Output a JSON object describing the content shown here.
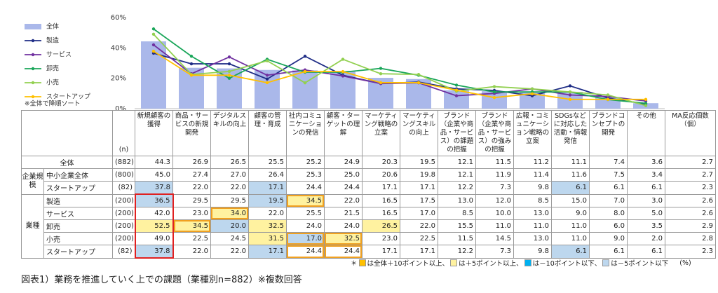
{
  "chart_data": {
    "type": "bar",
    "categories": [
      "新規顧客の獲得",
      "商品・サービスの新規開発",
      "デジタルスキルの向上",
      "顧客の管理・育成",
      "社内コミュニケーションの発信",
      "顧客・ターゲットの理解",
      "マーケティング戦略の立案",
      "マーケティングスキルの向上",
      "ブランド（企業や商品・サービス）の課題の把握",
      "ブランド（企業や商品・サービス）の強みの把握",
      "広報・コミュニケーション戦略の立案",
      "SDGsなどに対応した活動・情報発信",
      "ブランドコンセプトの開発",
      "その他"
    ],
    "ylim": [
      0,
      60
    ],
    "yticks": [
      {
        "value": 0,
        "label": "0%"
      },
      {
        "value": 20,
        "label": "20%"
      },
      {
        "value": 40,
        "label": "40%"
      },
      {
        "value": 60,
        "label": "60%"
      }
    ],
    "series": [
      {
        "name": "全体",
        "type": "bar",
        "color": "#aab8ea",
        "values": [
          44.3,
          26.9,
          26.5,
          25.5,
          25.2,
          24.9,
          20.3,
          19.5,
          12.1,
          11.5,
          11.2,
          11.1,
          7.4,
          3.6
        ]
      },
      {
        "name": "製造",
        "type": "line",
        "color": "#1f2d86",
        "values": [
          36.5,
          29.5,
          29.5,
          19.5,
          34.5,
          22.0,
          16.5,
          17.5,
          13.0,
          12.0,
          8.5,
          15.0,
          7.0,
          3.0
        ]
      },
      {
        "name": "サービス",
        "type": "line",
        "color": "#7030a0",
        "values": [
          42.0,
          23.0,
          34.0,
          22.0,
          25.5,
          21.5,
          16.5,
          17.0,
          8.5,
          10.0,
          13.0,
          9.0,
          8.0,
          5.0
        ]
      },
      {
        "name": "卸売",
        "type": "line",
        "color": "#1aa65a",
        "values": [
          52.5,
          34.5,
          20.0,
          32.5,
          24.0,
          24.0,
          26.5,
          22.0,
          15.5,
          11.0,
          11.0,
          11.0,
          6.0,
          3.5
        ]
      },
      {
        "name": "小売",
        "type": "line",
        "color": "#92d050",
        "values": [
          49.0,
          22.5,
          24.5,
          31.5,
          17.0,
          32.5,
          23.0,
          22.5,
          11.5,
          14.5,
          13.0,
          11.0,
          9.0,
          2.0
        ]
      },
      {
        "name": "スタートアップ",
        "type": "line",
        "color": "#ffc000",
        "values": [
          37.8,
          22.0,
          22.0,
          17.1,
          24.4,
          24.4,
          17.1,
          17.1,
          12.2,
          7.3,
          9.8,
          6.1,
          6.1,
          6.1
        ]
      }
    ],
    "note": "※全体で降順ソート"
  },
  "table": {
    "n_header": "(n)",
    "extra_header": "MA反応個数（個）",
    "top": {
      "label": "全体",
      "n": "(882)",
      "values": [
        "44.3",
        "26.9",
        "26.5",
        "25.5",
        "25.2",
        "24.9",
        "20.3",
        "19.5",
        "12.1",
        "11.5",
        "11.2",
        "11.1",
        "7.4",
        "3.6",
        "2.7"
      ],
      "fills": [
        null,
        null,
        null,
        null,
        null,
        null,
        null,
        null,
        null,
        null,
        null,
        null,
        null,
        null,
        null
      ]
    },
    "groups": [
      {
        "label": "企業規模",
        "rows": [
          {
            "label": "中小企業全体",
            "n": "(800)",
            "values": [
              "45.0",
              "27.4",
              "27.0",
              "26.4",
              "25.3",
              "25.0",
              "20.6",
              "19.8",
              "12.1",
              "11.9",
              "11.4",
              "11.6",
              "7.5",
              "3.4",
              "2.7"
            ],
            "fills": [
              null,
              null,
              null,
              null,
              null,
              null,
              null,
              null,
              null,
              null,
              null,
              null,
              null,
              null,
              null
            ]
          },
          {
            "label": "スタートアップ",
            "n": "(82)",
            "values": [
              "37.8",
              "22.0",
              "22.0",
              "17.1",
              "24.4",
              "24.4",
              "17.1",
              "17.1",
              "12.2",
              "7.3",
              "9.8",
              "6.1",
              "6.1",
              "6.1",
              "2.3"
            ],
            "fills": [
              "#bdd7ee",
              null,
              null,
              "#bdd7ee",
              null,
              null,
              null,
              null,
              null,
              null,
              null,
              "#bdd7ee",
              null,
              null,
              null
            ]
          }
        ]
      },
      {
        "label": "業種",
        "rows": [
          {
            "label": "製造",
            "n": "(200)",
            "values": [
              "36.5",
              "29.5",
              "29.5",
              "19.5",
              "34.5",
              "22.0",
              "16.5",
              "17.5",
              "13.0",
              "12.0",
              "8.5",
              "15.0",
              "7.0",
              "3.0",
              "2.6"
            ],
            "fills": [
              "#bdd7ee",
              null,
              null,
              "#bdd7ee",
              "#fff2a0",
              null,
              null,
              null,
              null,
              null,
              null,
              null,
              null,
              null,
              null
            ]
          },
          {
            "label": "サービス",
            "n": "(200)",
            "values": [
              "42.0",
              "23.0",
              "34.0",
              "22.0",
              "25.5",
              "21.5",
              "16.5",
              "17.0",
              "8.5",
              "10.0",
              "13.0",
              "9.0",
              "8.0",
              "5.0",
              "2.6"
            ],
            "fills": [
              null,
              null,
              "#fff2a0",
              null,
              null,
              null,
              null,
              null,
              null,
              null,
              null,
              null,
              null,
              null,
              null
            ]
          },
          {
            "label": "卸売",
            "n": "(200)",
            "values": [
              "52.5",
              "34.5",
              "20.0",
              "32.5",
              "24.0",
              "24.0",
              "26.5",
              "22.0",
              "15.5",
              "11.0",
              "11.0",
              "11.0",
              "6.0",
              "3.5",
              "2.9"
            ],
            "fills": [
              "#fff2a0",
              "#fff2a0",
              "#bdd7ee",
              "#fff2a0",
              null,
              null,
              "#fff2a0",
              null,
              null,
              null,
              null,
              null,
              null,
              null,
              null
            ]
          },
          {
            "label": "小売",
            "n": "(200)",
            "values": [
              "49.0",
              "22.5",
              "24.5",
              "31.5",
              "17.0",
              "32.5",
              "23.0",
              "22.5",
              "11.5",
              "14.5",
              "13.0",
              "11.0",
              "9.0",
              "2.0",
              "2.8"
            ],
            "fills": [
              null,
              null,
              null,
              "#fff2a0",
              "#bdd7ee",
              "#fff2a0",
              null,
              null,
              null,
              null,
              null,
              null,
              null,
              null,
              null
            ]
          },
          {
            "label": "スタートアップ",
            "n": "(82)",
            "values": [
              "37.8",
              "22.0",
              "22.0",
              "17.1",
              "24.4",
              "24.4",
              "17.1",
              "17.1",
              "12.2",
              "7.3",
              "9.8",
              "6.1",
              "6.1",
              "6.1",
              "2.3"
            ],
            "fills": [
              "#bdd7ee",
              null,
              null,
              "#bdd7ee",
              null,
              null,
              null,
              null,
              null,
              null,
              null,
              "#bdd7ee",
              null,
              null,
              null
            ]
          }
        ]
      }
    ]
  },
  "legend_note": {
    "star": "＊",
    "items": [
      {
        "color": "#ffc000",
        "text": "は全体＋10ポイント以上、"
      },
      {
        "color": "#fff2a0",
        "text": "は＋5ポイント以上、"
      },
      {
        "color": "#00b0f0",
        "text": "は－10ポイント以下、"
      },
      {
        "color": "#bdd7ee",
        "text": "は－5ポイント以下"
      }
    ],
    "unit": "(%)"
  },
  "caption": "図表1）業務を推進していく上での課題（業種別n=882）※複数回答"
}
